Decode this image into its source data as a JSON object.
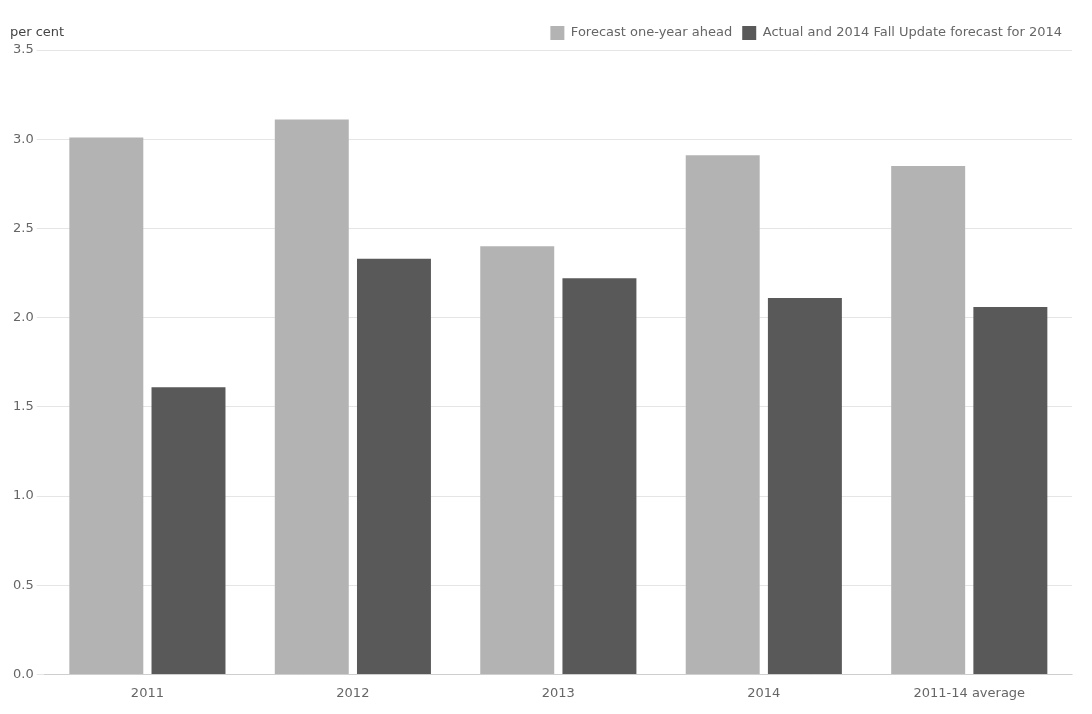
{
  "chart_data": {
    "type": "bar",
    "ylabel": "per cent",
    "categories": [
      "2011",
      "2012",
      "2013",
      "2014",
      "2011-14 average"
    ],
    "series": [
      {
        "name": "Forecast one-year ahead",
        "color": "#b3b3b3",
        "values": [
          3.01,
          3.11,
          2.4,
          2.91,
          2.85
        ]
      },
      {
        "name": "Actual and 2014 Fall Update forecast for 2014",
        "color": "#595959",
        "values": [
          1.61,
          2.33,
          2.22,
          2.11,
          2.06
        ]
      }
    ],
    "ylim": [
      0.0,
      3.5
    ],
    "yticks": [
      {
        "value": 0,
        "label": "0.0"
      },
      0.5,
      {
        "value": 1,
        "label": "1.0"
      },
      1.5,
      {
        "value": 2,
        "label": "2.0"
      },
      2.5,
      {
        "value": 3,
        "label": "3.0"
      },
      3.5
    ],
    "grid": true,
    "legend": "upper right"
  }
}
